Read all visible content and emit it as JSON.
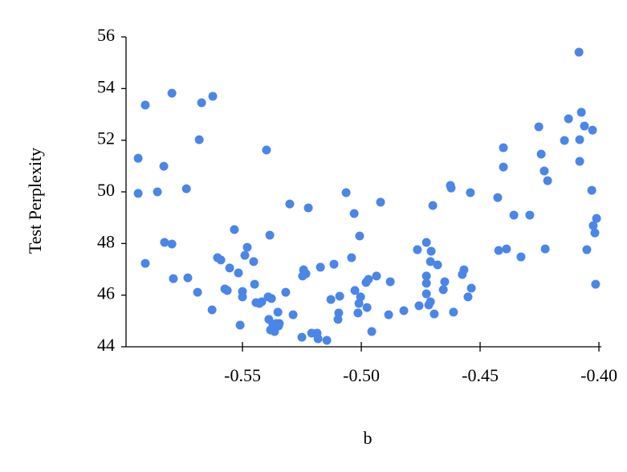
{
  "chart_data": {
    "type": "scatter",
    "x_label": "b",
    "y_label": "Test Perplexity",
    "color": "#4a86e8",
    "x": [
      -0.5939,
      -0.5939,
      -0.5909,
      -0.5909,
      -0.5858,
      -0.5831,
      -0.5828,
      -0.5797,
      -0.5797,
      -0.5791,
      -0.5736,
      -0.573,
      -0.5689,
      -0.5682,
      -0.5672,
      -0.5628,
      -0.5625,
      -0.5605,
      -0.5591,
      -0.5574,
      -0.5564,
      -0.5554,
      -0.5534,
      -0.5517,
      -0.551,
      -0.55,
      -0.55,
      -0.549,
      -0.548,
      -0.5453,
      -0.5449,
      -0.5443,
      -0.5429,
      -0.5419,
      -0.5399,
      -0.5392,
      -0.5389,
      -0.5385,
      -0.5382,
      -0.5378,
      -0.5372,
      -0.5365,
      -0.5358,
      -0.5351,
      -0.5348,
      -0.5345,
      -0.5318,
      -0.5301,
      -0.5287,
      -0.525,
      -0.5243,
      -0.5247,
      -0.5233,
      -0.5223,
      -0.5209,
      -0.5186,
      -0.5182,
      -0.5172,
      -0.5145,
      -0.5128,
      -0.5115,
      -0.5098,
      -0.5095,
      -0.5091,
      -0.5064,
      -0.5041,
      -0.503,
      -0.5027,
      -0.5014,
      -0.501,
      -0.5007,
      -0.5003,
      -0.498,
      -0.4976,
      -0.497,
      -0.4956,
      -0.4936,
      -0.4919,
      -0.4885,
      -0.4878,
      -0.4821,
      -0.4764,
      -0.4757,
      -0.4726,
      -0.4726,
      -0.4726,
      -0.4726,
      -0.4716,
      -0.4709,
      -0.4709,
      -0.4706,
      -0.4699,
      -0.4693,
      -0.4679,
      -0.4655,
      -0.4649,
      -0.4625,
      -0.4622,
      -0.4612,
      -0.4575,
      -0.4568,
      -0.4551,
      -0.4541,
      -0.4537,
      -0.4426,
      -0.4422,
      -0.4402,
      -0.4402,
      -0.4389,
      -0.4358,
      -0.4328,
      -0.4291,
      -0.4253,
      -0.4243,
      -0.423,
      -0.4226,
      -0.4216,
      -0.4145,
      -0.4128,
      -0.4084,
      -0.4081,
      -0.4081,
      -0.4074,
      -0.4061,
      -0.4051,
      -0.4027,
      -0.403,
      -0.4024,
      -0.4017,
      -0.4014,
      -0.401
    ],
    "values": [
      51.3,
      49.94,
      53.36,
      47.23,
      50.0,
      50.99,
      48.04,
      53.82,
      47.98,
      46.64,
      50.12,
      46.67,
      46.11,
      52.02,
      53.45,
      45.43,
      53.7,
      47.45,
      47.36,
      46.24,
      46.18,
      47.05,
      48.54,
      46.86,
      44.84,
      46.14,
      45.93,
      47.54,
      47.85,
      47.3,
      46.42,
      45.71,
      45.68,
      45.74,
      51.62,
      45.93,
      45.06,
      48.32,
      44.65,
      45.87,
      44.87,
      44.59,
      44.9,
      45.34,
      44.81,
      44.9,
      46.11,
      49.53,
      45.24,
      44.37,
      46.98,
      46.74,
      46.83,
      49.38,
      44.53,
      44.53,
      44.31,
      47.08,
      44.25,
      45.83,
      47.2,
      45.06,
      45.31,
      45.96,
      49.97,
      47.45,
      49.16,
      46.18,
      45.31,
      45.68,
      48.29,
      45.93,
      46.49,
      45.52,
      46.61,
      44.59,
      46.74,
      49.6,
      45.24,
      46.52,
      45.4,
      47.76,
      45.59,
      48.04,
      46.05,
      46.46,
      46.74,
      45.62,
      45.74,
      47.3,
      47.7,
      49.47,
      45.27,
      47.17,
      46.21,
      46.52,
      50.25,
      50.15,
      45.34,
      46.8,
      46.98,
      45.93,
      49.97,
      46.27,
      49.78,
      47.73,
      51.71,
      50.96,
      47.79,
      49.1,
      47.48,
      49.1,
      52.52,
      51.46,
      50.81,
      47.79,
      50.43,
      51.99,
      52.83,
      55.41,
      51.18,
      52.02,
      53.08,
      52.55,
      47.76,
      52.39,
      50.06,
      48.69,
      48.41,
      46.42,
      48.97
    ],
    "xlim": [
      -0.599,
      -0.399
    ],
    "ylim": [
      44,
      56
    ],
    "xticks": [
      -0.55,
      {
        "value": -0.5,
        "label": "-0.50"
      },
      -0.45,
      {
        "value": -0.4,
        "label": "-0.40"
      }
    ],
    "yticks": [
      44,
      46,
      48,
      50,
      52,
      54,
      56
    ]
  }
}
